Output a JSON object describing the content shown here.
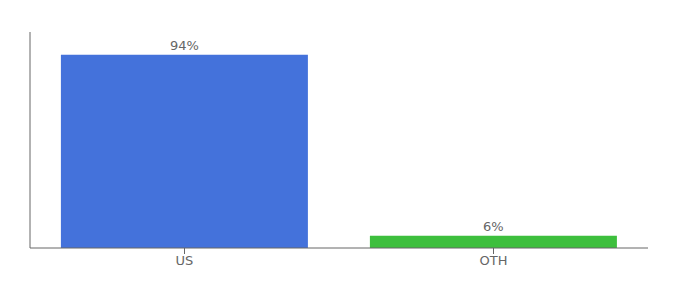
{
  "chart_data": {
    "type": "bar",
    "categories": [
      "US",
      "OTH"
    ],
    "values": [
      94,
      6
    ],
    "value_labels": [
      "94%",
      "6%"
    ],
    "colors": [
      "#4472db",
      "#3dbf3d"
    ],
    "ylim": [
      0,
      105
    ],
    "data_labels": true,
    "tick_labels": "x"
  }
}
